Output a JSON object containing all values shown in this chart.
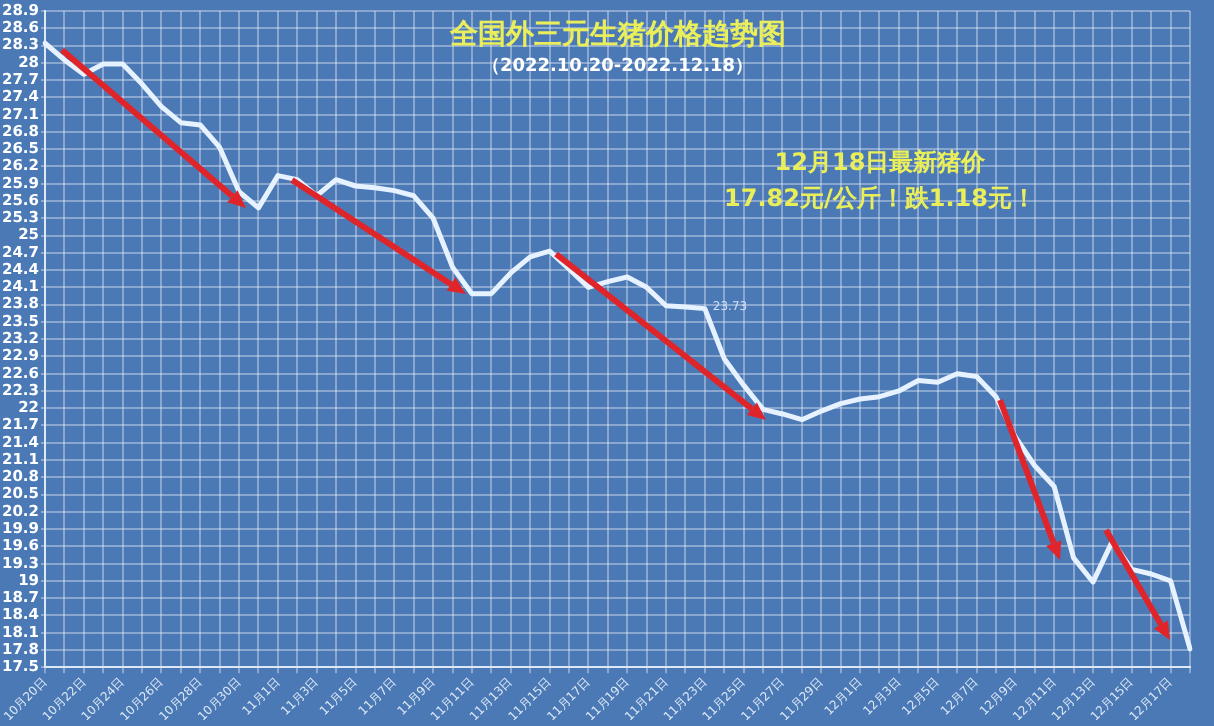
{
  "chart_data": {
    "type": "line",
    "title": "全国外三元生猪价格趋势图",
    "subtitle": "（2022.10.20-2022.12.18）",
    "annotations": [
      "12月18日最新猪价",
      "17.82元/公斤！跌1.18元！",
      {
        "text": "23.73",
        "x": "11月23日",
        "y": 23.73
      }
    ],
    "categories": [
      "10月20日",
      null,
      "10月22日",
      null,
      "10月24日",
      null,
      "10月26日",
      null,
      "10月28日",
      null,
      "10月30日",
      null,
      "11月1日",
      null,
      "11月3日",
      null,
      "11月5日",
      null,
      "11月7日",
      null,
      "11月9日",
      null,
      "11月11日",
      null,
      "11月13日",
      null,
      "11月15日",
      null,
      "11月17日",
      null,
      "11月19日",
      null,
      "11月21日",
      null,
      "11月23日",
      null,
      "11月25日",
      null,
      "11月27日",
      null,
      "11月29日",
      null,
      "12月1日",
      null,
      "12月3日",
      null,
      "12月5日",
      null,
      "12月7日",
      null,
      "12月9日",
      null,
      "12月11日",
      null,
      "12月13日",
      null,
      "12月15日",
      null,
      "12月17日",
      null
    ],
    "series": [
      {
        "color": "#e6f2ff",
        "values": [
          28.34,
          28.05,
          27.8,
          27.98,
          27.98,
          27.63,
          27.24,
          26.96,
          26.92,
          26.53,
          25.76,
          25.48,
          26.04,
          25.97,
          25.69,
          25.97,
          25.86,
          25.83,
          25.78,
          25.69,
          25.3,
          24.45,
          23.99,
          23.99,
          24.35,
          24.63,
          24.73,
          24.42,
          24.1,
          24.2,
          24.28,
          24.1,
          23.78,
          23.76,
          23.73,
          22.86,
          22.4,
          21.98,
          21.9,
          21.8,
          21.95,
          22.08,
          22.16,
          22.2,
          22.3,
          22.48,
          22.45,
          22.6,
          22.55,
          22.2,
          21.5,
          21.0,
          20.64,
          19.4,
          18.98,
          19.69,
          19.2,
          19.12,
          19.0,
          17.82
        ]
      }
    ],
    "ylim": [
      17.5,
      28.9
    ],
    "yticks": [
      17.5,
      17.8,
      18.1,
      18.4,
      18.7,
      19,
      19.3,
      19.6,
      19.9,
      20.2,
      20.5,
      20.8,
      21.1,
      21.4,
      21.7,
      22,
      22.3,
      22.6,
      22.9,
      23.2,
      23.5,
      23.8,
      24.1,
      24.4,
      24.7,
      25,
      25.3,
      25.6,
      25.9,
      26.2,
      26.5,
      26.8,
      27.1,
      27.4,
      27.7,
      28,
      28.3,
      28.6,
      28.9
    ],
    "grid": true,
    "legend": false,
    "marker": "none",
    "line_style": "solid"
  }
}
